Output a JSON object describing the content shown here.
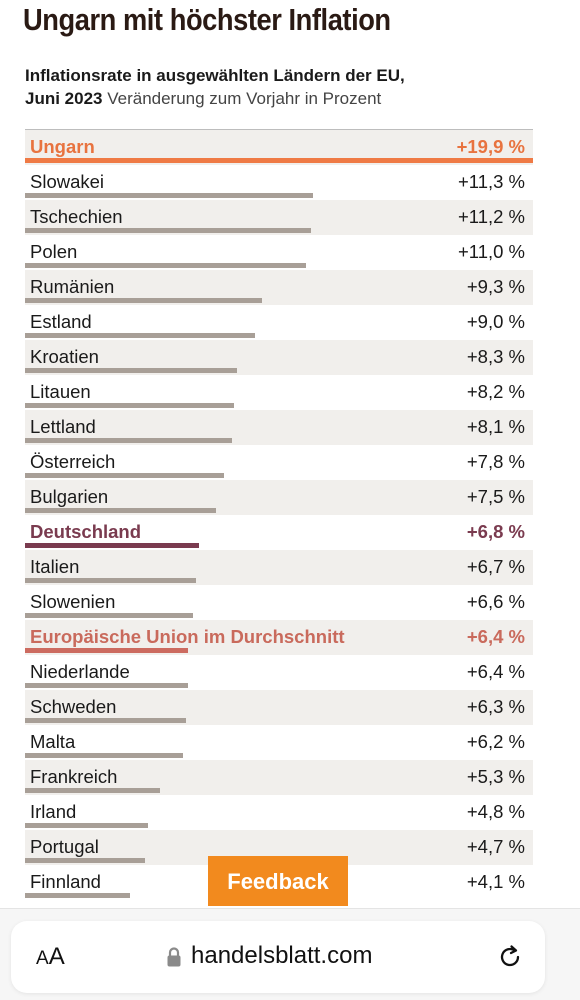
{
  "header": {
    "headline": "Ungarn mit höchster Inflation",
    "subtitle_bold_line1": "Inflationsrate in ausgewählten Ländern der EU,",
    "subtitle_bold_line2": "Juni 2023",
    "subtitle_light": " Veränderung zum Vorjahr in Prozent"
  },
  "colors": {
    "highlight_hungary": "#ef7a45",
    "highlight_germany": "#7a3b4f",
    "highlight_eu": "#cc6b60",
    "default_bar": "#a89f97",
    "row_shade": "#f1efec",
    "feedback_bg": "#f28a1e"
  },
  "chart_data": {
    "type": "bar",
    "orientation": "horizontal",
    "title": "Ungarn mit höchster Inflation",
    "subtitle": "Inflationsrate in ausgewählten Ländern der EU, Juni 2023 Veränderung zum Vorjahr in Prozent",
    "unit": "%",
    "grid": false,
    "rows": [
      {
        "category": "Ungarn",
        "value": 19.9,
        "label": "+19,9 %",
        "highlight": "hungary"
      },
      {
        "category": "Slowakei",
        "value": 11.3,
        "label": "+11,3 %"
      },
      {
        "category": "Tschechien",
        "value": 11.2,
        "label": "+11,2 %"
      },
      {
        "category": "Polen",
        "value": 11.0,
        "label": "+11,0 %"
      },
      {
        "category": "Rumänien",
        "value": 9.3,
        "label": "+9,3 %"
      },
      {
        "category": "Estland",
        "value": 9.0,
        "label": "+9,0 %"
      },
      {
        "category": "Kroatien",
        "value": 8.3,
        "label": "+8,3 %"
      },
      {
        "category": "Litauen",
        "value": 8.2,
        "label": "+8,2 %"
      },
      {
        "category": "Lettland",
        "value": 8.1,
        "label": "+8,1 %"
      },
      {
        "category": "Österreich",
        "value": 7.8,
        "label": "+7,8 %"
      },
      {
        "category": "Bulgarien",
        "value": 7.5,
        "label": "+7,5 %"
      },
      {
        "category": "Deutschland",
        "value": 6.8,
        "label": "+6,8 %",
        "highlight": "de"
      },
      {
        "category": "Italien",
        "value": 6.7,
        "label": "+6,7 %"
      },
      {
        "category": "Slowenien",
        "value": 6.6,
        "label": "+6,6 %"
      },
      {
        "category": "Europäische Union im Durchschnitt",
        "value": 6.4,
        "label": "+6,4 %",
        "highlight": "eu"
      },
      {
        "category": "Niederlande",
        "value": 6.4,
        "label": "+6,4 %"
      },
      {
        "category": "Schweden",
        "value": 6.3,
        "label": "+6,3 %"
      },
      {
        "category": "Malta",
        "value": 6.2,
        "label": "+6,2 %"
      },
      {
        "category": "Frankreich",
        "value": 5.3,
        "label": "+5,3 %"
      },
      {
        "category": "Irland",
        "value": 4.8,
        "label": "+4,8 %"
      },
      {
        "category": "Portugal",
        "value": 4.7,
        "label": "+4,7 %"
      },
      {
        "category": "Finnland",
        "value": 4.1,
        "label": "+4,1 %"
      }
    ],
    "xlim": [
      0,
      19.9
    ]
  },
  "feedback": {
    "label": "Feedback"
  },
  "browser": {
    "text_size_label_small": "A",
    "text_size_label_large": "A",
    "url": "handelsblatt.com",
    "lock_icon": "lock-icon",
    "reload_icon": "reload-icon"
  }
}
